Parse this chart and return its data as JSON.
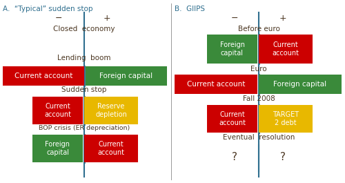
{
  "title_color": "#2e6e8e",
  "text_color": "#4a3520",
  "line_color": "#2e6e8e",
  "red": "#cc0000",
  "green": "#3a8a3a",
  "yellow": "#e8b800",
  "white": "#ffffff",
  "fig_w": 5.0,
  "fig_h": 2.65,
  "dpi": 100,
  "panel_A": {
    "title": "A.  “Typical” sudden stop",
    "minus": "−",
    "plus": "+",
    "closed_economy": "Closed  economy",
    "lending_boom": "Lending  boom",
    "row1_left": "Current account",
    "row1_right": "Foreign capital",
    "row1_label": "Sudden stop",
    "row2_left": "Current\naccount",
    "row2_right": "Reserve\ndepletion",
    "row3_label": "BOP crisis (ER depreciation)",
    "row3_left": "Foreign\ncapital",
    "row3_right": "Current\naccount"
  },
  "panel_B": {
    "title": "B.  GIIPS",
    "minus": "−",
    "plus": "+",
    "before_euro": "Before euro",
    "euro": "Euro",
    "row0_left": "Foreign\ncapital",
    "row0_right": "Current\naccount",
    "row1_left": "Current account",
    "row1_right": "Foreign capital",
    "row1_label": "Fall 2008",
    "row2_left": "Current\naccount",
    "row2_right": "TARGET\n2 debt",
    "row3_label": "Eventual  resolution",
    "row3_left": "?",
    "row3_right": "?"
  }
}
